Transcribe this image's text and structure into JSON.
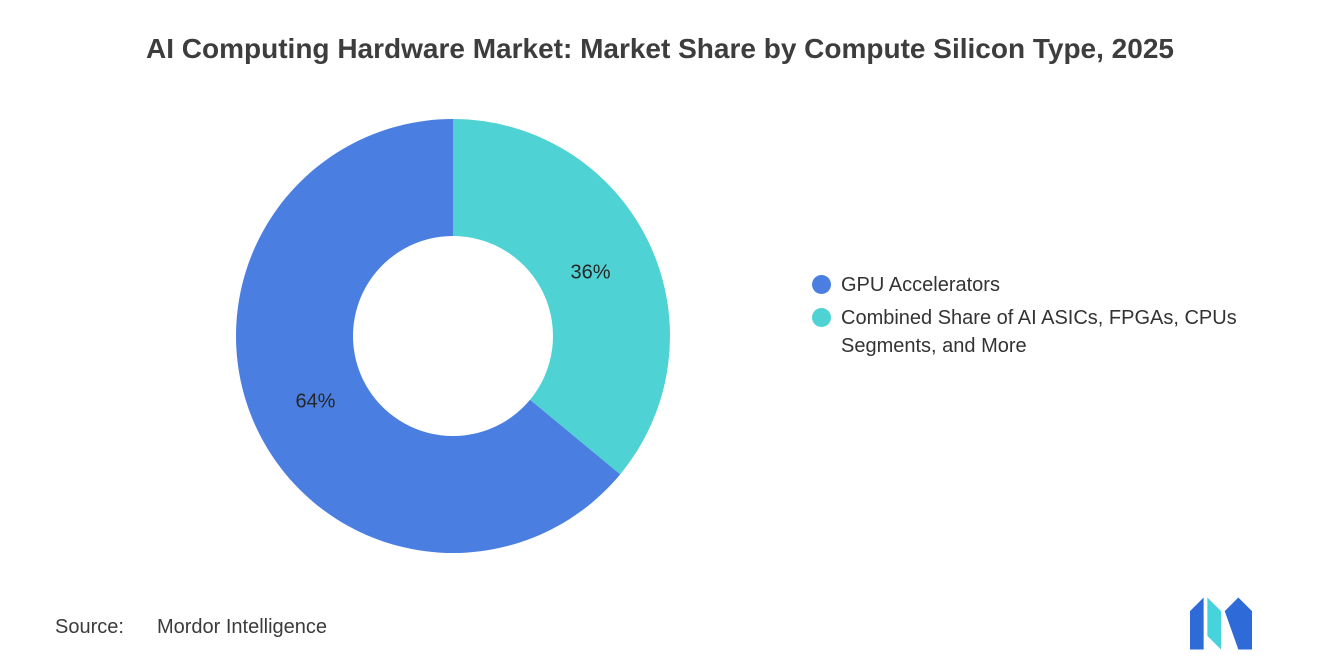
{
  "title": "AI Computing Hardware Market: Market Share by Compute Silicon Type, 2025",
  "source": {
    "label": "Source:",
    "value": "Mordor Intelligence"
  },
  "logo": {
    "name": "mordor-intelligence-logo",
    "blue": "#2E6BD8",
    "teal": "#47D3DB"
  },
  "colors": {
    "gpu_blue": "#4A7FE1",
    "combined_teal": "#4FD2D4",
    "label_text": "#262626"
  },
  "chart_data": {
    "type": "pie",
    "donut": true,
    "title": "AI Computing Hardware Market: Market Share by Compute Silicon Type, 2025",
    "start_angle_deg": 0,
    "direction": "clockwise",
    "segments": [
      {
        "label": "Combined Share of AI ASICs, FPGAs, CPUs Segments, and More",
        "value": 36,
        "data_label": "36%",
        "color": "#4FD2D4"
      },
      {
        "label": "GPU Accelerators",
        "value": 64,
        "data_label": "64%",
        "color": "#4A7FE1"
      }
    ],
    "legend_position": "right",
    "legend": [
      {
        "label": "GPU Accelerators",
        "color": "#4A7FE1"
      },
      {
        "label": "Combined Share of AI ASICs, FPGAs, CPUs Segments, and More",
        "color": "#4FD2D4"
      }
    ]
  }
}
